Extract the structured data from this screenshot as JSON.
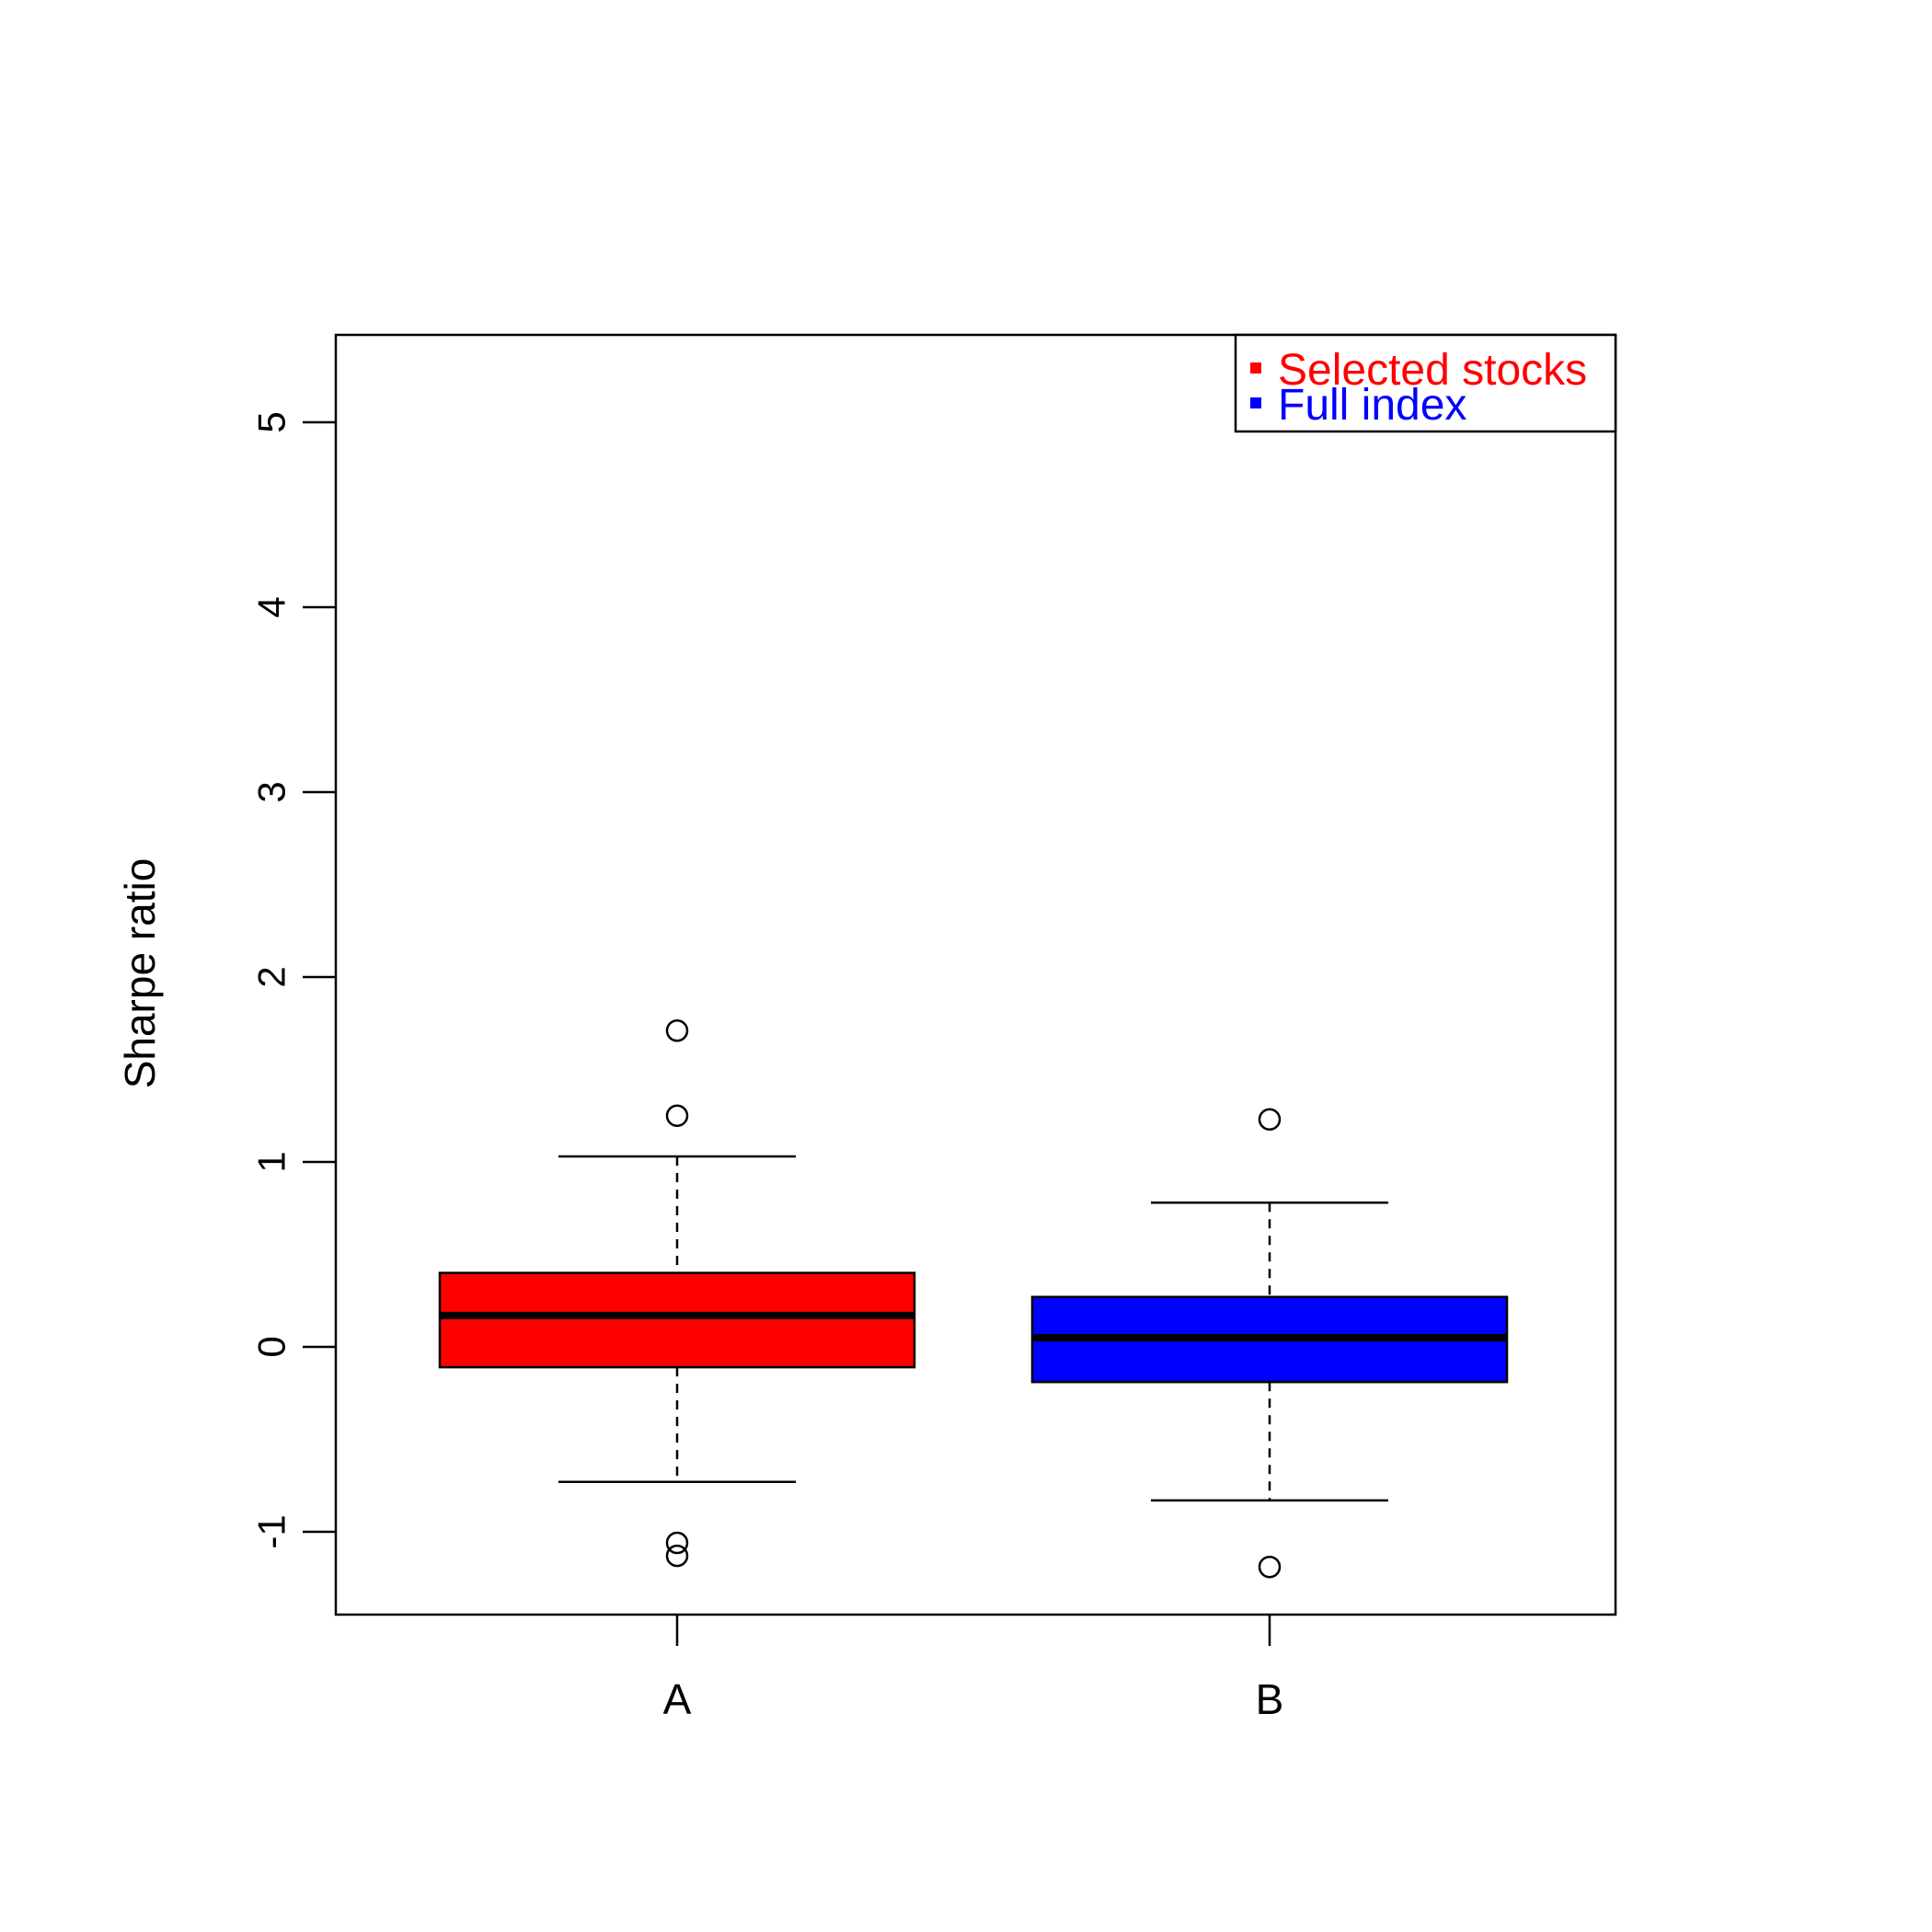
{
  "chart_data": {
    "type": "box",
    "title": "",
    "xlabel": "",
    "ylabel": "Sharpe ratio",
    "ylim": [
      -1.45,
      5.48
    ],
    "yticks": [
      -1,
      0,
      1,
      2,
      3,
      4,
      5
    ],
    "grid": false,
    "legend_position": "top-right",
    "categories": [
      "A",
      "B"
    ],
    "series": [
      {
        "name": "Selected stocks",
        "category": "A",
        "color": "#ff0000",
        "whisker_low": -0.73,
        "q1": -0.11,
        "median": 0.17,
        "q3": 0.4,
        "whisker_high": 1.03,
        "outliers": [
          1.71,
          1.25,
          -1.06,
          -1.13
        ]
      },
      {
        "name": "Full index",
        "category": "B",
        "color": "#0000ff",
        "whisker_low": -0.83,
        "q1": -0.19,
        "median": 0.05,
        "q3": 0.27,
        "whisker_high": 0.78,
        "outliers": [
          1.23,
          -1.19
        ]
      }
    ]
  }
}
